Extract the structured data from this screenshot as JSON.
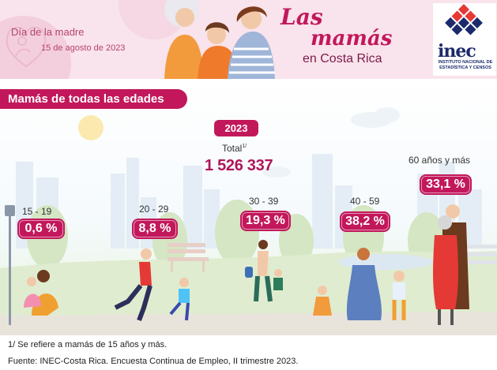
{
  "header": {
    "left_title": "Día de la madre",
    "left_date": "15 de agosto de 2023",
    "title_line1": "Las",
    "title_line2": "mamás",
    "subtitle": "en Costa Rica",
    "logo_name": "inec",
    "logo_sub1": "INSTITUTO NACIONAL DE",
    "logo_sub2": "ESTADÍSTICA Y CENSOS"
  },
  "section_title": "Mamás de todas las edades",
  "summary": {
    "year": "2023",
    "total_label": "Total",
    "total_note": "1/",
    "total_value": "1 526 337"
  },
  "age_groups": [
    {
      "label": "15 - 19",
      "percent": "0,6 %"
    },
    {
      "label": "20 - 29",
      "percent": "8,8 %"
    },
    {
      "label": "30 - 39",
      "percent": "19,3 %"
    },
    {
      "label": "40 - 59",
      "percent": "38,2 %"
    },
    {
      "label": "60 años y más",
      "percent": "33,1 %"
    }
  ],
  "footnotes": {
    "note1": "1/ Se refiere a mamás de 15 años y más.",
    "source": "Fuente: INEC-Costa Rica. Encuesta Continua de Empleo, II trimestre 2023."
  },
  "colors": {
    "accent": "#c2185b",
    "header_bg": "#f9e3ec",
    "logo_blue": "#1b2a6b",
    "logo_red": "#e53935"
  },
  "icons": [
    "heart-mother-icon",
    "inec-logo-mark"
  ]
}
